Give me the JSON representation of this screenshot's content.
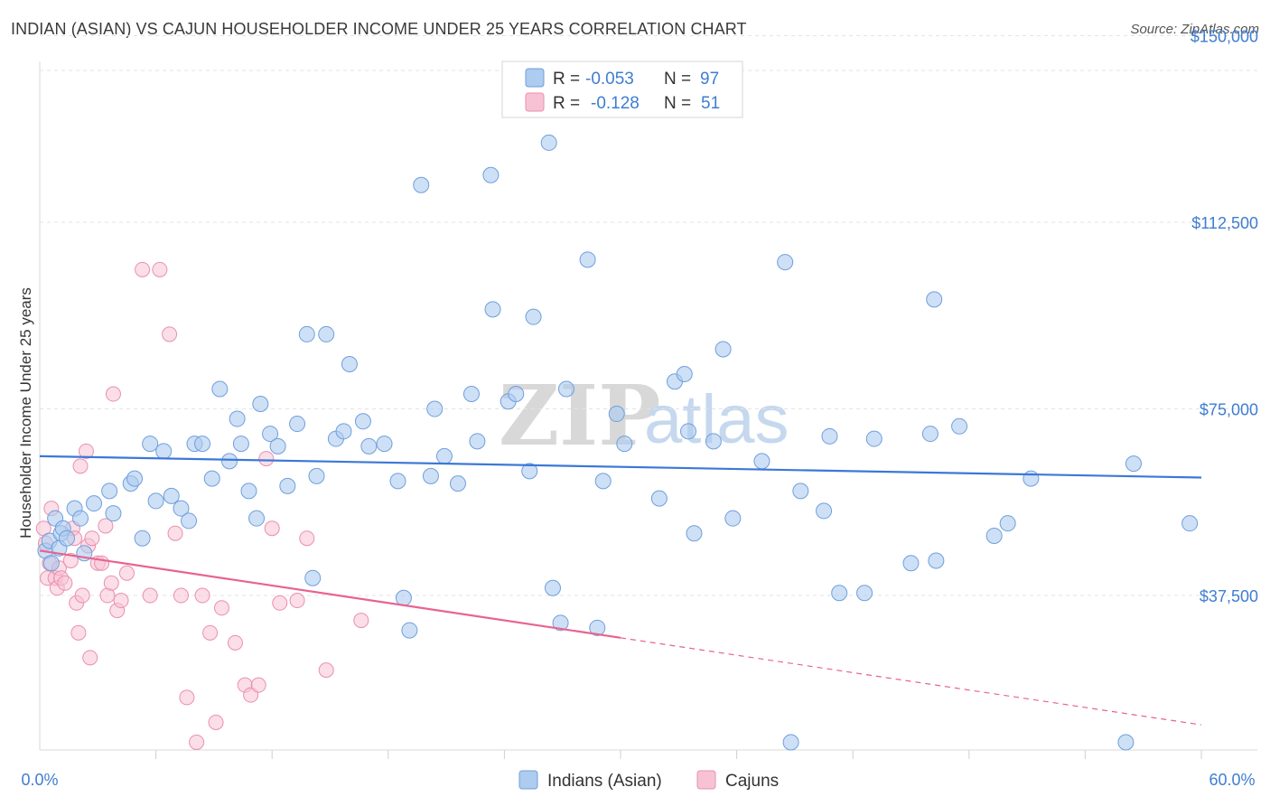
{
  "header": {
    "title": "INDIAN (ASIAN) VS CAJUN HOUSEHOLDER INCOME UNDER 25 YEARS CORRELATION CHART",
    "source": "Source: ZipAtlas.com"
  },
  "watermark": {
    "zip": "ZIP",
    "atlas": "atlas"
  },
  "legend_top": {
    "rows": [
      {
        "r_label": "R =",
        "r_value": "-0.053",
        "n_label": "N =",
        "n_value": "97"
      },
      {
        "r_label": "R =",
        "r_value": "-0.128",
        "n_label": "N =",
        "n_value": "51"
      }
    ]
  },
  "legend_bottom": {
    "items": [
      "Indians (Asian)",
      "Cajuns"
    ]
  },
  "colors": {
    "blue_fill": "#aecbf0",
    "blue_stroke": "#6f9fdc",
    "blue_line": "#3c78d8",
    "pink_fill": "#f7c3d4",
    "pink_stroke": "#ea8fae",
    "pink_line": "#e8638f",
    "accent_text": "#3f7dd1"
  },
  "chart_data": {
    "type": "scatter",
    "title": "INDIAN (ASIAN) VS CAJUN HOUSEHOLDER INCOME UNDER 25 YEARS CORRELATION CHART",
    "xlabel": "",
    "ylabel": "Householder Income Under 25 years",
    "xlim": [
      0,
      60
    ],
    "ylim": [
      5000,
      155000
    ],
    "x_tick_labels": [
      "0.0%",
      "60.0%"
    ],
    "y_ticks": [
      37500,
      75000,
      112500,
      150000
    ],
    "y_tick_labels": [
      "$37,500",
      "$75,000",
      "$112,500",
      "$150,000"
    ],
    "grid": true,
    "legend_position": "top-center",
    "series": [
      {
        "name": "Indians (Asian)",
        "color": "#aecbf0",
        "r": -0.053,
        "n": 97,
        "trend": {
          "x": [
            0,
            60
          ],
          "y": [
            65500,
            61200
          ]
        },
        "points": [
          [
            0.3,
            46500
          ],
          [
            0.5,
            48500
          ],
          [
            0.6,
            44000
          ],
          [
            0.8,
            53000
          ],
          [
            1.0,
            47000
          ],
          [
            1.1,
            50000
          ],
          [
            1.2,
            51000
          ],
          [
            1.4,
            49000
          ],
          [
            1.8,
            55000
          ],
          [
            2.1,
            53000
          ],
          [
            2.3,
            46000
          ],
          [
            2.8,
            56000
          ],
          [
            3.6,
            58500
          ],
          [
            3.8,
            54000
          ],
          [
            4.7,
            60000
          ],
          [
            4.9,
            61000
          ],
          [
            5.3,
            49000
          ],
          [
            5.7,
            68000
          ],
          [
            6.0,
            56500
          ],
          [
            6.4,
            66500
          ],
          [
            6.8,
            57500
          ],
          [
            7.3,
            55000
          ],
          [
            7.7,
            52500
          ],
          [
            8.0,
            68000
          ],
          [
            8.4,
            68000
          ],
          [
            8.9,
            61000
          ],
          [
            9.3,
            79000
          ],
          [
            9.8,
            64500
          ],
          [
            10.2,
            73000
          ],
          [
            10.4,
            68000
          ],
          [
            10.8,
            58500
          ],
          [
            11.2,
            53000
          ],
          [
            11.4,
            76000
          ],
          [
            11.9,
            70000
          ],
          [
            12.3,
            67500
          ],
          [
            12.8,
            59500
          ],
          [
            13.3,
            72000
          ],
          [
            13.8,
            90000
          ],
          [
            14.1,
            41000
          ],
          [
            14.3,
            61500
          ],
          [
            14.8,
            90000
          ],
          [
            15.3,
            69000
          ],
          [
            15.7,
            70500
          ],
          [
            16.0,
            84000
          ],
          [
            16.7,
            72500
          ],
          [
            17.0,
            67500
          ],
          [
            17.8,
            68000
          ],
          [
            18.5,
            60500
          ],
          [
            18.8,
            37000
          ],
          [
            19.1,
            30500
          ],
          [
            19.7,
            120000
          ],
          [
            20.2,
            61500
          ],
          [
            20.4,
            75000
          ],
          [
            20.9,
            65500
          ],
          [
            21.6,
            60000
          ],
          [
            22.3,
            78000
          ],
          [
            22.6,
            68500
          ],
          [
            23.3,
            122000
          ],
          [
            23.4,
            95000
          ],
          [
            24.2,
            76500
          ],
          [
            24.6,
            78000
          ],
          [
            25.3,
            62500
          ],
          [
            25.5,
            93500
          ],
          [
            26.3,
            128500
          ],
          [
            26.5,
            39000
          ],
          [
            26.9,
            32000
          ],
          [
            27.2,
            79000
          ],
          [
            28.3,
            105000
          ],
          [
            28.8,
            31000
          ],
          [
            29.1,
            60500
          ],
          [
            29.8,
            74000
          ],
          [
            30.2,
            68000
          ],
          [
            32.0,
            57000
          ],
          [
            32.8,
            80500
          ],
          [
            33.3,
            82000
          ],
          [
            33.5,
            70500
          ],
          [
            33.8,
            50000
          ],
          [
            34.8,
            68500
          ],
          [
            35.3,
            87000
          ],
          [
            35.8,
            53000
          ],
          [
            37.3,
            64500
          ],
          [
            38.5,
            104500
          ],
          [
            38.8,
            8000
          ],
          [
            39.3,
            58500
          ],
          [
            40.5,
            54500
          ],
          [
            40.8,
            69500
          ],
          [
            41.3,
            38000
          ],
          [
            42.6,
            38000
          ],
          [
            43.1,
            69000
          ],
          [
            45.0,
            44000
          ],
          [
            46.0,
            70000
          ],
          [
            46.2,
            97000
          ],
          [
            46.3,
            44500
          ],
          [
            47.5,
            71500
          ],
          [
            49.3,
            49500
          ],
          [
            50.0,
            52000
          ],
          [
            51.2,
            61000
          ],
          [
            56.1,
            8000
          ],
          [
            56.5,
            64000
          ],
          [
            59.4,
            52000
          ]
        ]
      },
      {
        "name": "Cajuns",
        "color": "#f7c3d4",
        "r": -0.128,
        "n": 51,
        "trend": {
          "x": [
            0,
            30
          ],
          "y": [
            46500,
            29000
          ]
        },
        "trend_dashed": {
          "x": [
            30,
            60
          ],
          "y": [
            29000,
            11500
          ]
        },
        "points": [
          [
            0.2,
            51000
          ],
          [
            0.3,
            48000
          ],
          [
            0.4,
            41000
          ],
          [
            0.5,
            44000
          ],
          [
            0.6,
            55000
          ],
          [
            0.8,
            41000
          ],
          [
            0.9,
            39000
          ],
          [
            1.0,
            43000
          ],
          [
            1.1,
            41000
          ],
          [
            1.3,
            40000
          ],
          [
            1.6,
            44500
          ],
          [
            1.7,
            51000
          ],
          [
            1.8,
            49000
          ],
          [
            1.9,
            36000
          ],
          [
            2.0,
            30000
          ],
          [
            2.1,
            63500
          ],
          [
            2.2,
            37500
          ],
          [
            2.4,
            66500
          ],
          [
            2.5,
            47500
          ],
          [
            2.6,
            25000
          ],
          [
            2.7,
            49000
          ],
          [
            3.0,
            44000
          ],
          [
            3.2,
            44000
          ],
          [
            3.4,
            51500
          ],
          [
            3.5,
            37500
          ],
          [
            3.7,
            40000
          ],
          [
            3.8,
            78000
          ],
          [
            4.0,
            34500
          ],
          [
            4.2,
            36500
          ],
          [
            4.5,
            42000
          ],
          [
            5.3,
            103000
          ],
          [
            5.7,
            37500
          ],
          [
            6.2,
            103000
          ],
          [
            6.7,
            90000
          ],
          [
            7.0,
            50000
          ],
          [
            7.3,
            37500
          ],
          [
            7.6,
            17000
          ],
          [
            8.1,
            8000
          ],
          [
            8.4,
            37500
          ],
          [
            8.8,
            30000
          ],
          [
            9.1,
            12000
          ],
          [
            9.4,
            35000
          ],
          [
            10.1,
            28000
          ],
          [
            10.6,
            19500
          ],
          [
            10.9,
            17500
          ],
          [
            11.3,
            19500
          ],
          [
            11.7,
            65000
          ],
          [
            12.0,
            51000
          ],
          [
            12.4,
            36000
          ],
          [
            13.3,
            36500
          ],
          [
            13.8,
            49000
          ],
          [
            14.8,
            22500
          ],
          [
            16.6,
            32500
          ]
        ]
      }
    ]
  }
}
